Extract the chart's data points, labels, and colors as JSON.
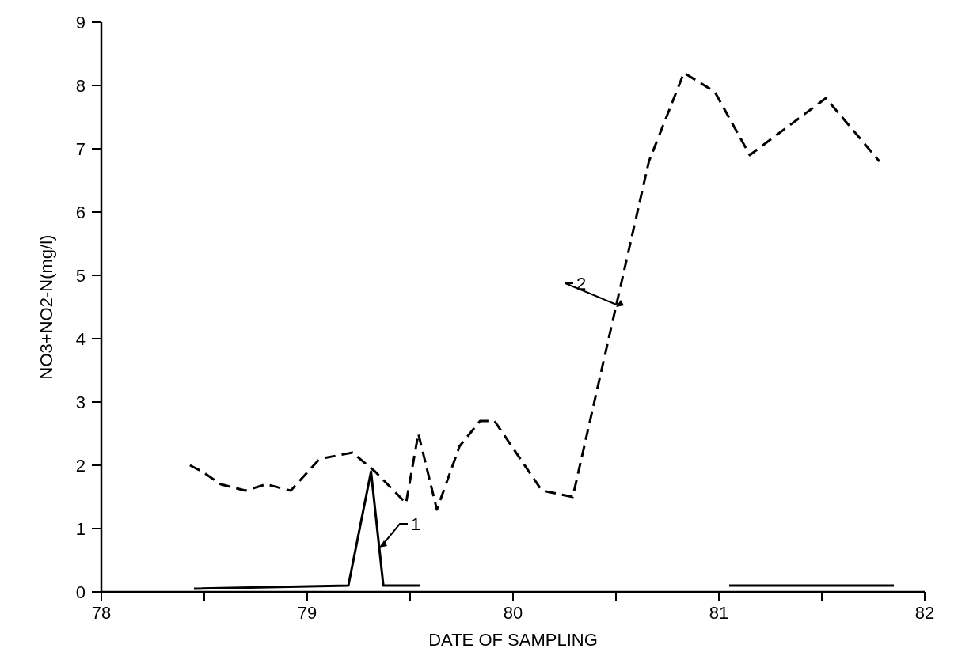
{
  "chart_data": {
    "type": "line",
    "xlabel": "DATE OF SAMPLING",
    "ylabel": "NO3+NO2-N(mg/l)",
    "xlim": [
      78,
      82
    ],
    "ylim": [
      0,
      9
    ],
    "xticks": [
      78,
      {
        "value": 78.5,
        "label": null
      },
      79,
      {
        "value": 79.5,
        "label": null
      },
      80,
      {
        "value": 80.5,
        "label": null
      },
      81,
      {
        "value": 81.5,
        "label": null
      },
      82
    ],
    "yticks": [
      0,
      1,
      2,
      3,
      4,
      5,
      6,
      7,
      8,
      9
    ],
    "grid": false,
    "marker": "none",
    "series": [
      {
        "color": "#000000",
        "line_style": "solid",
        "x": [
          78.45,
          79.2,
          79.31,
          79.37,
          79.55,
          80.3,
          81.05,
          81.85
        ],
        "values": [
          0.05,
          0.1,
          1.9,
          0.1,
          0.1,
          null,
          0.1,
          0.1
        ]
      },
      {
        "color": "#000000",
        "line_style": "dashed",
        "x": [
          78.43,
          78.49,
          78.58,
          78.7,
          78.8,
          78.92,
          79.06,
          79.22,
          79.33,
          79.48,
          79.54,
          79.63,
          79.74,
          79.84,
          79.91,
          80.14,
          80.29,
          80.66,
          80.83,
          80.98,
          81.15,
          81.52,
          81.78
        ],
        "values": [
          2.0,
          1.9,
          1.7,
          1.6,
          1.7,
          1.6,
          2.1,
          2.2,
          1.9,
          1.4,
          2.5,
          1.3,
          2.3,
          2.7,
          2.7,
          1.6,
          1.5,
          6.8,
          8.2,
          7.9,
          6.9,
          7.8,
          6.8
        ]
      }
    ],
    "annotations": [
      {
        "text": "1",
        "x": 79.35,
        "y": 0.7
      },
      {
        "text": "2",
        "x": 80.5,
        "y": 4.5
      }
    ]
  }
}
